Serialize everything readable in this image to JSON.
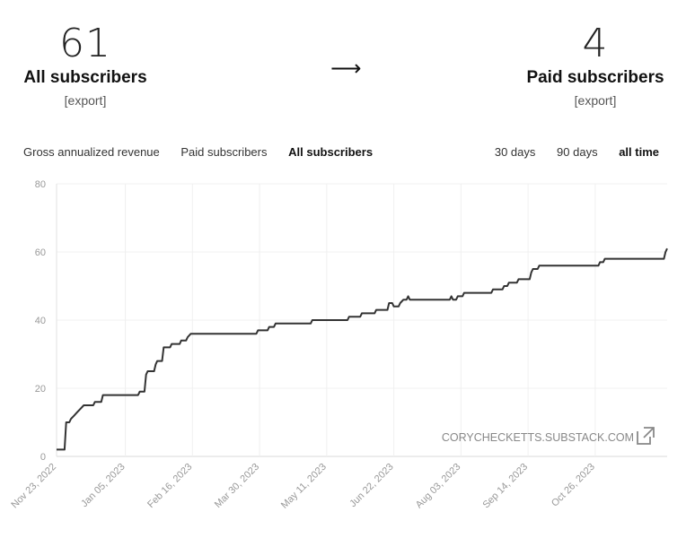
{
  "stats": {
    "all": {
      "value": "61",
      "label": "All subscribers",
      "export": "[export]"
    },
    "paid": {
      "value": "4",
      "label": "Paid subscribers",
      "export": "[export]"
    },
    "arrow": "⟶"
  },
  "tabs": {
    "metrics": [
      "Gross annualized revenue",
      "Paid subscribers",
      "All subscribers"
    ],
    "active_metric": "All subscribers",
    "ranges": [
      "30 days",
      "90 days",
      "all time"
    ],
    "active_range": "all time"
  },
  "watermark": {
    "text": "CORYCHECKETTS.SUBSTACK.COM",
    "icon": "external-link-icon"
  },
  "chart_data": {
    "type": "line",
    "title": "",
    "xlabel": "",
    "ylabel": "",
    "x_range": [
      "2022-11-23",
      "2023-12-10"
    ],
    "ylim": [
      0,
      80
    ],
    "y_ticks": [
      0,
      20,
      40,
      60,
      80
    ],
    "x_ticks": [
      "Nov 23, 2022",
      "Jan 05, 2023",
      "Feb 16, 2023",
      "Mar 30, 2023",
      "May 11, 2023",
      "Jun 22, 2023",
      "Aug 03, 2023",
      "Sep 14, 2023",
      "Oct 26, 2023"
    ],
    "x_tick_dates": [
      "2022-11-23",
      "2023-01-05",
      "2023-02-16",
      "2023-03-30",
      "2023-05-11",
      "2023-06-22",
      "2023-08-03",
      "2023-09-14",
      "2023-10-26"
    ],
    "grid": true,
    "series": [
      {
        "color": "#333333",
        "points": [
          [
            "2022-11-23",
            2
          ],
          [
            "2022-11-28",
            2
          ],
          [
            "2022-11-29",
            10
          ],
          [
            "2022-12-01",
            10
          ],
          [
            "2022-12-02",
            11
          ],
          [
            "2022-12-04",
            12
          ],
          [
            "2022-12-06",
            13
          ],
          [
            "2022-12-08",
            14
          ],
          [
            "2022-12-10",
            15
          ],
          [
            "2022-12-16",
            15
          ],
          [
            "2022-12-17",
            16
          ],
          [
            "2022-12-21",
            16
          ],
          [
            "2022-12-22",
            18
          ],
          [
            "2023-01-13",
            18
          ],
          [
            "2023-01-14",
            19
          ],
          [
            "2023-01-17",
            19
          ],
          [
            "2023-01-18",
            24
          ],
          [
            "2023-01-19",
            25
          ],
          [
            "2023-01-23",
            25
          ],
          [
            "2023-01-24",
            27
          ],
          [
            "2023-01-25",
            28
          ],
          [
            "2023-01-28",
            28
          ],
          [
            "2023-01-29",
            32
          ],
          [
            "2023-02-02",
            32
          ],
          [
            "2023-02-03",
            33
          ],
          [
            "2023-02-08",
            33
          ],
          [
            "2023-02-09",
            34
          ],
          [
            "2023-02-12",
            34
          ],
          [
            "2023-02-13",
            35
          ],
          [
            "2023-02-15",
            36
          ],
          [
            "2023-03-28",
            36
          ],
          [
            "2023-03-29",
            37
          ],
          [
            "2023-04-04",
            37
          ],
          [
            "2023-04-05",
            38
          ],
          [
            "2023-04-08",
            38
          ],
          [
            "2023-04-09",
            39
          ],
          [
            "2023-05-01",
            39
          ],
          [
            "2023-05-02",
            40
          ],
          [
            "2023-05-24",
            40
          ],
          [
            "2023-05-25",
            41
          ],
          [
            "2023-06-01",
            41
          ],
          [
            "2023-06-02",
            42
          ],
          [
            "2023-06-10",
            42
          ],
          [
            "2023-06-11",
            43
          ],
          [
            "2023-06-18",
            43
          ],
          [
            "2023-06-19",
            45
          ],
          [
            "2023-06-21",
            45
          ],
          [
            "2023-06-22",
            44
          ],
          [
            "2023-06-25",
            44
          ],
          [
            "2023-06-26",
            45
          ],
          [
            "2023-06-28",
            46
          ],
          [
            "2023-06-30",
            46
          ],
          [
            "2023-07-01",
            47
          ],
          [
            "2023-07-02",
            46
          ],
          [
            "2023-07-27",
            46
          ],
          [
            "2023-07-28",
            47
          ],
          [
            "2023-07-29",
            46
          ],
          [
            "2023-07-31",
            46
          ],
          [
            "2023-08-01",
            47
          ],
          [
            "2023-08-04",
            47
          ],
          [
            "2023-08-05",
            48
          ],
          [
            "2023-08-22",
            48
          ],
          [
            "2023-08-23",
            49
          ],
          [
            "2023-08-29",
            49
          ],
          [
            "2023-08-30",
            50
          ],
          [
            "2023-09-01",
            50
          ],
          [
            "2023-09-02",
            51
          ],
          [
            "2023-09-07",
            51
          ],
          [
            "2023-09-08",
            52
          ],
          [
            "2023-09-15",
            52
          ],
          [
            "2023-09-16",
            54
          ],
          [
            "2023-09-17",
            55
          ],
          [
            "2023-09-20",
            55
          ],
          [
            "2023-09-21",
            56
          ],
          [
            "2023-10-28",
            56
          ],
          [
            "2023-10-29",
            57
          ],
          [
            "2023-10-31",
            57
          ],
          [
            "2023-11-01",
            58
          ],
          [
            "2023-12-08",
            58
          ],
          [
            "2023-12-09",
            60
          ],
          [
            "2023-12-10",
            61
          ]
        ]
      }
    ]
  }
}
